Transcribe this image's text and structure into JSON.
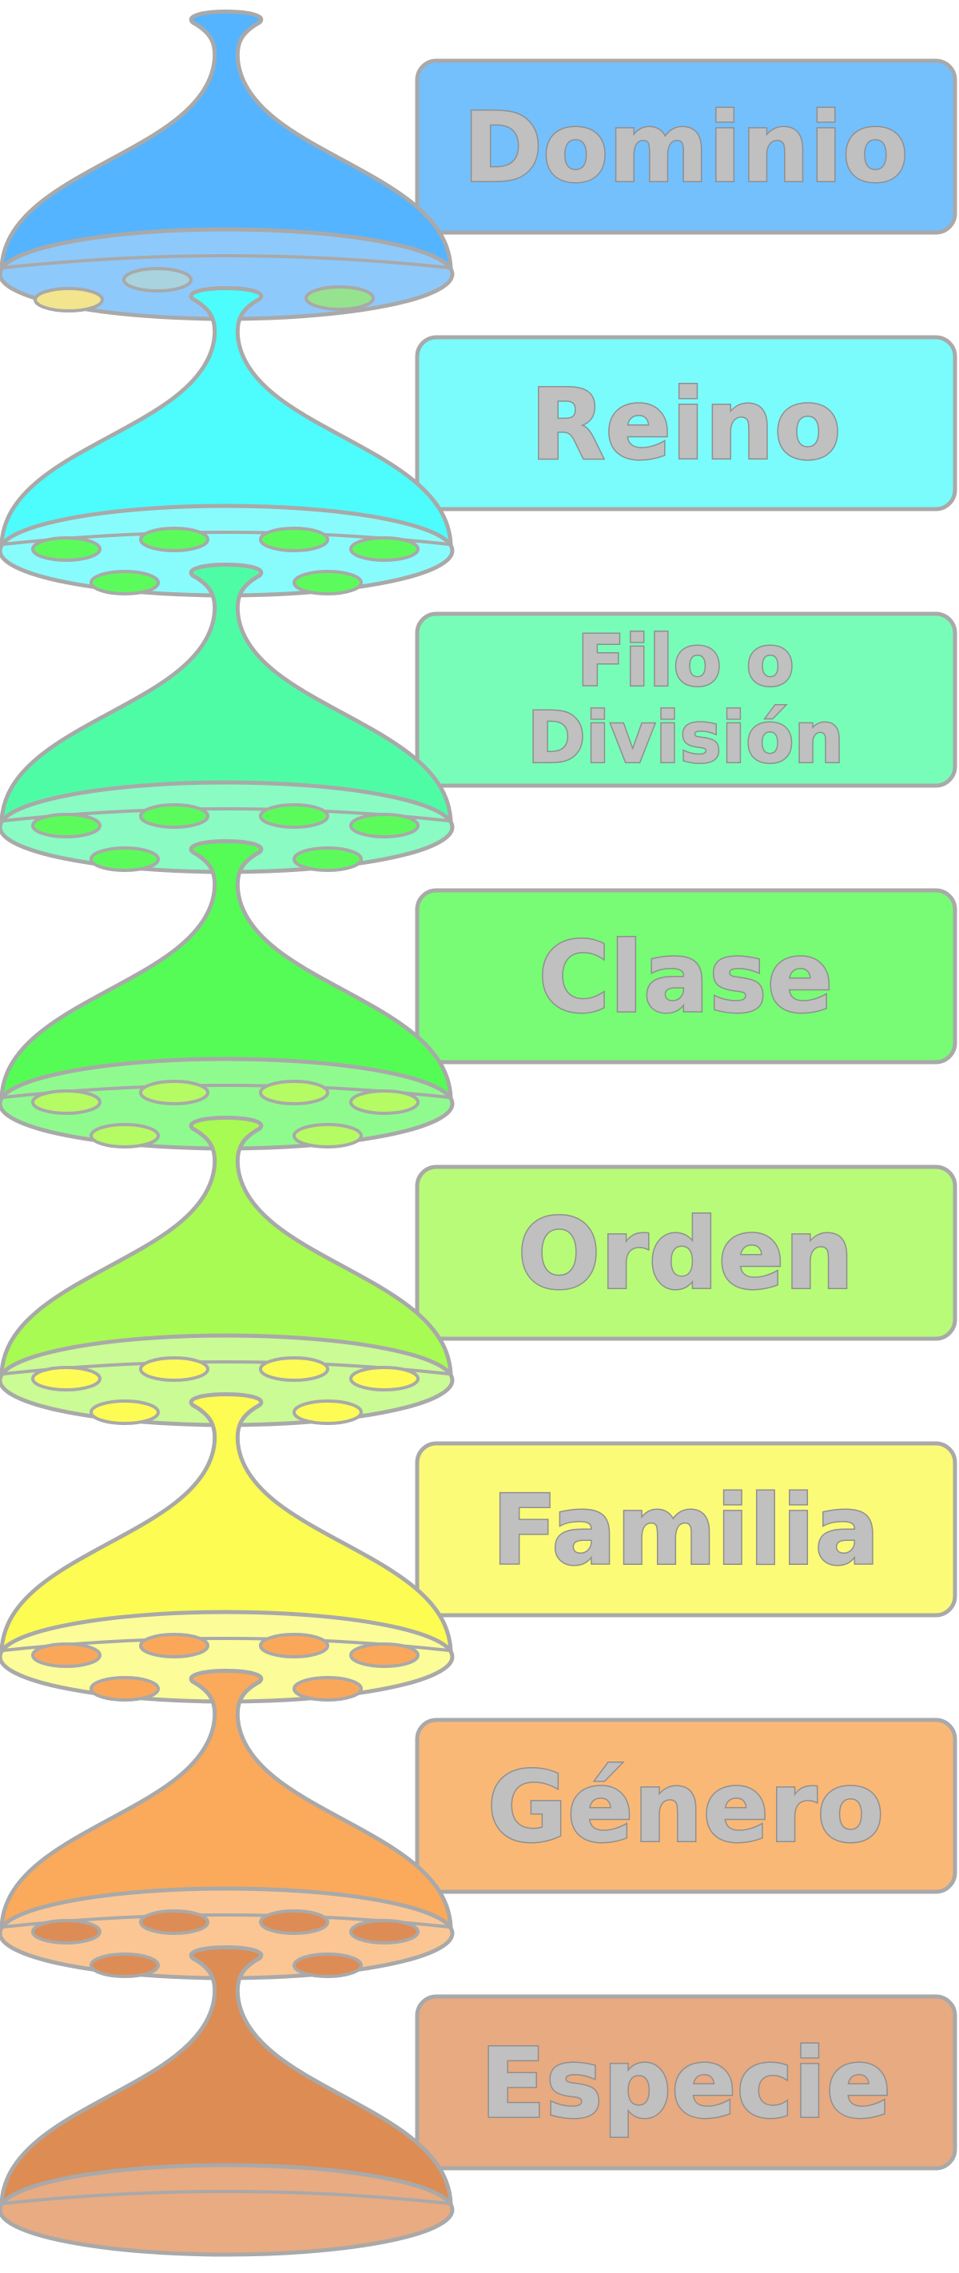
{
  "diagram": {
    "ranks": [
      {
        "label": [
          "Dominio"
        ],
        "body": "#55b4ff",
        "dish": "#8ec9fb",
        "box": "#74c0fd",
        "holes": [
          "#f3e58e",
          "#a8d3df",
          "#95e38e"
        ]
      },
      {
        "label": [
          "Reino"
        ],
        "body": "#4dfcfc",
        "dish": "#88fcfc",
        "box": "#7afcfc",
        "holes": [
          "#5cfb5c",
          "#5cfb5c",
          "#5cfb5c",
          "#5cfb5c",
          "#5cfb5c",
          "#5cfb5c"
        ]
      },
      {
        "label": [
          "Filo o",
          "División"
        ],
        "body": "#4ffca6",
        "dish": "#89fbc3",
        "box": "#78fdb8",
        "holes": [
          "#5cfb5c",
          "#5cfb5c",
          "#5cfb5c",
          "#5cfb5c",
          "#5cfb5c",
          "#5cfb5c"
        ]
      },
      {
        "label": [
          "Clase"
        ],
        "body": "#55fc55",
        "dish": "#8ffb8e",
        "box": "#78fb75",
        "holes": [
          "#b5fb64",
          "#b5fb64",
          "#b5fb64",
          "#b5fb64",
          "#b5fb64",
          "#b5fb64"
        ]
      },
      {
        "label": [
          "Orden"
        ],
        "body": "#a8fb52",
        "dish": "#cafb94",
        "box": "#b8fb78",
        "holes": [
          "#fcfc55",
          "#fcfc55",
          "#fcfc55",
          "#fcfc55",
          "#fcfc55",
          "#fcfc55"
        ]
      },
      {
        "label": [
          "Familia"
        ],
        "body": "#fcfc52",
        "dish": "#fcfc99",
        "box": "#fcfb77",
        "holes": [
          "#fba75a",
          "#fba75a",
          "#fba75a",
          "#fba75a",
          "#fba75a",
          "#fba75a"
        ]
      },
      {
        "label": [
          "Género"
        ],
        "body": "#fba95a",
        "dish": "#fbc693",
        "box": "#fab877",
        "holes": [
          "#de8c55",
          "#de8c55",
          "#de8c55",
          "#de8c55",
          "#de8c55",
          "#de8c55"
        ]
      },
      {
        "label": [
          "Especie"
        ],
        "body": "#dd8c53",
        "dish": "#e9ab81",
        "box": "#e8aa80",
        "holes": []
      }
    ],
    "outline_color": "#a9a9a9"
  }
}
